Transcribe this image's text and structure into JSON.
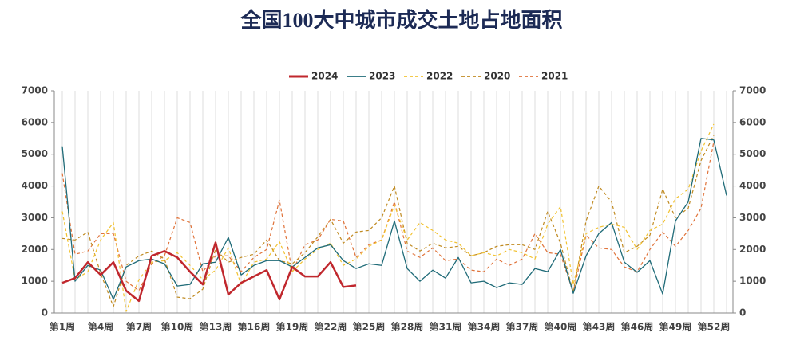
{
  "chart_data": {
    "type": "line",
    "title": "全国100大中城市成交土地占地面积",
    "categories": [
      "第1周",
      null,
      null,
      "第4周",
      null,
      null,
      "第7周",
      null,
      null,
      "第10周",
      null,
      null,
      "第13周",
      null,
      null,
      "第16周",
      null,
      null,
      "第19周",
      null,
      null,
      "第22周",
      null,
      null,
      "第25周",
      null,
      null,
      "第28周",
      null,
      null,
      "第31周",
      null,
      null,
      "第34周",
      null,
      null,
      "第37周",
      null,
      null,
      "第40周",
      null,
      null,
      "第43周",
      null,
      null,
      "第46周",
      null,
      null,
      "第49周",
      null,
      null,
      "第52周",
      null
    ],
    "series": [
      {
        "name": "2024",
        "color": "#c0272d",
        "width": 2.5,
        "dash": false,
        "values": [
          950,
          1100,
          1600,
          1200,
          1600,
          700,
          380,
          1800,
          1950,
          1750,
          1300,
          900,
          2220,
          580,
          950,
          1150,
          1350,
          430,
          1450,
          1150,
          1150,
          1600,
          820,
          870,
          null,
          null,
          null,
          null,
          null,
          null,
          null,
          null,
          null,
          null,
          null,
          null,
          null,
          null,
          null,
          null,
          null,
          null,
          null,
          null,
          null,
          null,
          null,
          null,
          null,
          null,
          null,
          null,
          null
        ]
      },
      {
        "name": "2023",
        "color": "#1f6b78",
        "width": 1.3,
        "dash": false,
        "values": [
          5250,
          1000,
          1500,
          1350,
          430,
          1450,
          1650,
          1700,
          1550,
          850,
          900,
          1550,
          1600,
          2380,
          1200,
          1500,
          1650,
          1650,
          1450,
          1750,
          2050,
          2150,
          1650,
          1400,
          1550,
          1500,
          2900,
          1400,
          1000,
          1350,
          1100,
          1750,
          950,
          1000,
          800,
          950,
          900,
          1400,
          1300,
          2000,
          620,
          1800,
          2500,
          2850,
          1600,
          1280,
          1650,
          600,
          2900,
          3500,
          5500,
          5450,
          3700
        ]
      },
      {
        "name": "2022",
        "color": "#f2c230",
        "width": 1.2,
        "dash": true,
        "values": [
          3200,
          1050,
          1300,
          2300,
          2850,
          50,
          1050,
          1600,
          1650,
          1900,
          1500,
          1050,
          1350,
          2050,
          900,
          1600,
          1700,
          2250,
          1300,
          1700,
          2000,
          2200,
          1500,
          1700,
          2100,
          2300,
          3400,
          2300,
          2850,
          2600,
          2300,
          2200,
          1800,
          1900,
          1800,
          2000,
          1900,
          1700,
          2800,
          3350,
          900,
          2500,
          2700,
          2800,
          2700,
          2000,
          2600,
          2800,
          3600,
          3900,
          5100,
          5950,
          null
        ]
      },
      {
        "name": "2020",
        "color": "#c08a20",
        "width": 1.2,
        "dash": true,
        "values": [
          2350,
          2300,
          2550,
          1250,
          200,
          1500,
          1800,
          1950,
          1700,
          500,
          450,
          750,
          2000,
          1600,
          1750,
          1850,
          2300,
          1650,
          1550,
          1900,
          2400,
          2950,
          2200,
          2550,
          2600,
          3000,
          4000,
          2200,
          1950,
          2200,
          2050,
          2100,
          1800,
          1900,
          2100,
          2150,
          2150,
          2000,
          3200,
          2200,
          650,
          2900,
          4000,
          3500,
          1900,
          2100,
          2450,
          3900,
          3000,
          3300,
          4800,
          5600,
          null
        ]
      },
      {
        "name": "2021",
        "color": "#e0733a",
        "width": 1.2,
        "dash": true,
        "values": [
          4400,
          1850,
          1950,
          2500,
          2500,
          1000,
          700,
          1550,
          1800,
          3000,
          2850,
          1300,
          1800,
          1800,
          1300,
          1750,
          2000,
          3550,
          1300,
          2150,
          2300,
          2950,
          2900,
          1750,
          2150,
          2300,
          3500,
          1950,
          1750,
          2050,
          1650,
          1700,
          1350,
          1300,
          1700,
          1500,
          1700,
          2500,
          1900,
          1850,
          650,
          2450,
          2050,
          2000,
          1450,
          1300,
          2000,
          2550,
          2100,
          2600,
          3300,
          5400,
          null
        ]
      }
    ],
    "ylim": [
      0,
      7000
    ],
    "yticks": [
      0,
      1000,
      2000,
      3000,
      4000,
      5000,
      6000,
      7000
    ],
    "y2lim": [
      0,
      7000
    ],
    "y2ticks": [
      0,
      1000,
      2000,
      3000,
      4000,
      5000,
      6000,
      7000
    ],
    "xgrid": true,
    "ygrid": false,
    "legend": "top"
  }
}
